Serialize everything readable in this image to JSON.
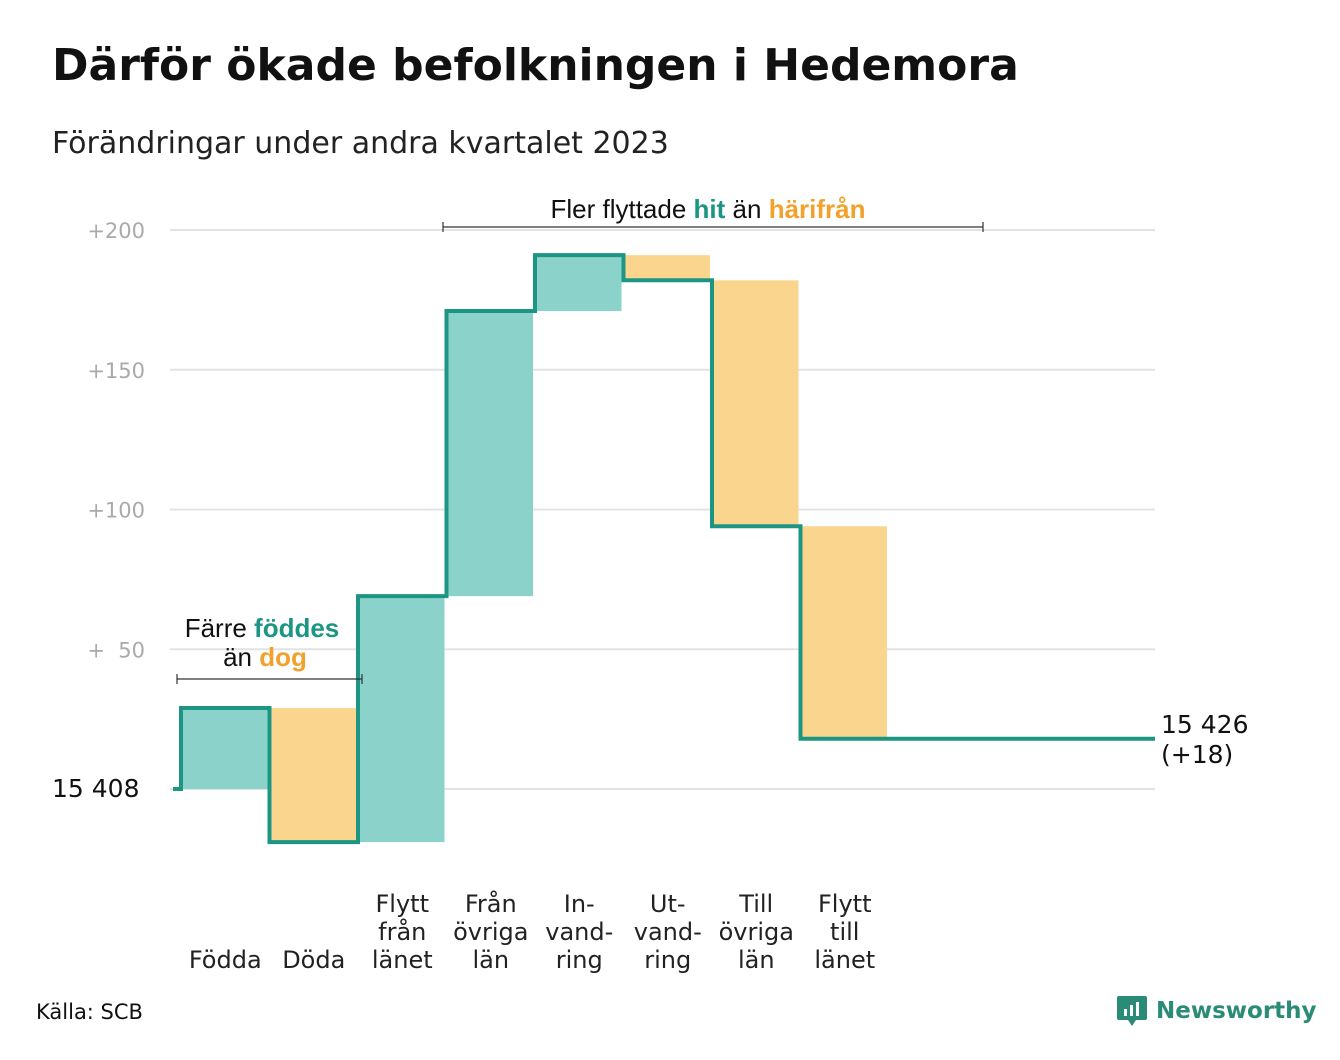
{
  "title": "Därför ökade befolkningen i Hedemora",
  "subtitle": "Förändringar under andra kvartalet 2023",
  "source": "Källa: SCB",
  "brand": "Newsworthy",
  "colors": {
    "line": "#1d9583",
    "increase": "#8bd3ca",
    "decrease": "#fad58e",
    "teal_text": "#1d9583",
    "orange_text": "#f2a22c",
    "grid": "#e3e3e6"
  },
  "chart_data": {
    "type": "waterfall",
    "start_value": 15408,
    "start_label": "15 408",
    "end_label": "15 426",
    "end_change": "(+18)",
    "ylim": [
      -20,
      200
    ],
    "yticks": [
      {
        "value": 200,
        "label": "+200"
      },
      {
        "value": 150,
        "label": "+150"
      },
      {
        "value": 100,
        "label": "+100"
      },
      {
        "value": 50,
        "label": "+  50"
      }
    ],
    "steps": [
      {
        "label": [
          "Födda"
        ],
        "change": 29
      },
      {
        "label": [
          "Döda"
        ],
        "change": -48
      },
      {
        "label": [
          "Flytt",
          "från",
          "länet"
        ],
        "change": 88
      },
      {
        "label": [
          "Från",
          "övriga",
          "län"
        ],
        "change": 102
      },
      {
        "label": [
          "In-",
          "vand-",
          "ring"
        ],
        "change": 20
      },
      {
        "label": [
          "Ut-",
          "vand-",
          "ring"
        ],
        "change": -9
      },
      {
        "label": [
          "Till",
          "övriga",
          "län"
        ],
        "change": -88
      },
      {
        "label": [
          "Flytt",
          "till",
          "länet"
        ],
        "change": -76
      }
    ],
    "annotations": {
      "births": {
        "line1_pre": "Färre ",
        "line1_hl": "föddes",
        "line2_pre": "än ",
        "line2_hl": "dog"
      },
      "moves": {
        "pre": "Fler flyttade ",
        "hl1": "hit",
        "mid": " än ",
        "hl2": "härifrån"
      }
    }
  }
}
